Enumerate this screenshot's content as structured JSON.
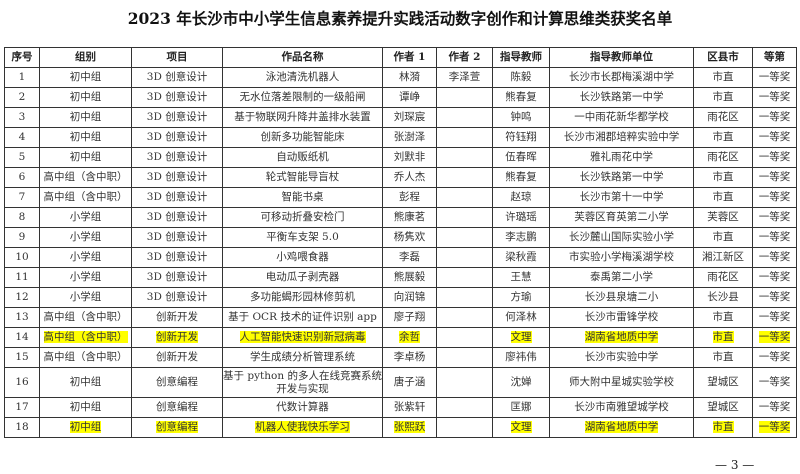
{
  "title": "2023 年长沙市中小学生信息素养提升实践活动数字创作和计算思维类获奖名单",
  "columns": [
    "序号",
    "组别",
    "项目",
    "作品名称",
    "作者 1",
    "作者 2",
    "指导教师",
    "指导教师单位",
    "区县市",
    "等第"
  ],
  "highlight_color": "#ffff00",
  "rows": [
    [
      "1",
      "初中组",
      "3D 创意设计",
      "泳池清洗机器人",
      "林漪",
      "李泽萱",
      "陈毅",
      "长沙市长郡梅溪湖中学",
      "市直",
      "一等奖"
    ],
    [
      "2",
      "初中组",
      "3D 创意设计",
      "无水位落差限制的一级船闸",
      "谭峥",
      "",
      "熊春复",
      "长沙铁路第一中学",
      "市直",
      "一等奖"
    ],
    [
      "3",
      "初中组",
      "3D 创意设计",
      "基于物联网升降井盖排水装置",
      "刘琛宸",
      "",
      "钟鸣",
      "一中雨花新华都学校",
      "雨花区",
      "一等奖"
    ],
    [
      "4",
      "初中组",
      "3D 创意设计",
      "创新多功能智能床",
      "张澍泽",
      "",
      "符钰翔",
      "长沙市湘郡培粹实验中学",
      "市直",
      "一等奖"
    ],
    [
      "5",
      "初中组",
      "3D 创意设计",
      "自动贩纸机",
      "刘默非",
      "",
      "伍春晖",
      "雅礼雨花中学",
      "雨花区",
      "一等奖"
    ],
    [
      "6",
      "高中组（含中职）",
      "3D 创意设计",
      "轮式智能导盲杖",
      "乔人杰",
      "",
      "熊春复",
      "长沙铁路第一中学",
      "市直",
      "一等奖"
    ],
    [
      "7",
      "高中组（含中职）",
      "3D 创意设计",
      "智能书桌",
      "彭程",
      "",
      "赵琼",
      "长沙市第十一中学",
      "市直",
      "一等奖"
    ],
    [
      "8",
      "小学组",
      "3D 创意设计",
      "可移动折叠安检门",
      "熊康茗",
      "",
      "许璐瑶",
      "芙蓉区育英第二小学",
      "芙蓉区",
      "一等奖"
    ],
    [
      "9",
      "小学组",
      "3D 创意设计",
      "平衡车支架 5.0",
      "杨隽欢",
      "",
      "李志鹏",
      "长沙麓山国际实验小学",
      "市直",
      "一等奖"
    ],
    [
      "10",
      "小学组",
      "3D 创意设计",
      "小鸡喂食器",
      "李磊",
      "",
      "梁秋霞",
      "市实验小学梅溪湖学校",
      "湘江新区",
      "一等奖"
    ],
    [
      "11",
      "小学组",
      "3D 创意设计",
      "电动瓜子剥壳器",
      "熊展毅",
      "",
      "王慧",
      "泰禹第二小学",
      "雨花区",
      "一等奖"
    ],
    [
      "12",
      "小学组",
      "3D 创意设计",
      "多功能蝎形园林修剪机",
      "向润锦",
      "",
      "方瑜",
      "长沙县泉塘二小",
      "长沙县",
      "一等奖"
    ],
    [
      "13",
      "高中组（含中职）",
      "创新开发",
      "基于 OCR 技术的证件识别 app",
      "廖子翔",
      "",
      "何泽林",
      "长沙市雷锋学校",
      "市直",
      "一等奖"
    ],
    [
      "14",
      "高中组（含中职）",
      "创新开发",
      "人工智能快速识别新冠病毒",
      "余哲",
      "",
      "文理",
      "湖南省地质中学",
      "市直",
      "一等奖"
    ],
    [
      "15",
      "高中组（含中职）",
      "创新开发",
      "学生成绩分析管理系统",
      "李卓杨",
      "",
      "廖祎伟",
      "长沙市实验中学",
      "市直",
      "一等奖"
    ],
    [
      "16",
      "初中组",
      "创意编程",
      "基于 python 的多人在线竞赛系统开发与实现",
      "唐子涵",
      "",
      "沈婵",
      "师大附中星城实验学校",
      "望城区",
      "一等奖"
    ],
    [
      "17",
      "初中组",
      "创意编程",
      "代数计算器",
      "张紫轩",
      "",
      "匡娜",
      "长沙市南雅望城学校",
      "望城区",
      "一等奖"
    ],
    [
      "18",
      "初中组",
      "创意编程",
      "机器人使我快乐学习",
      "张熙跃",
      "",
      "文理",
      "湖南省地质中学",
      "市直",
      "一等奖"
    ]
  ],
  "highlighted_rows": [
    "14",
    "18"
  ],
  "footer": "— 3 —"
}
